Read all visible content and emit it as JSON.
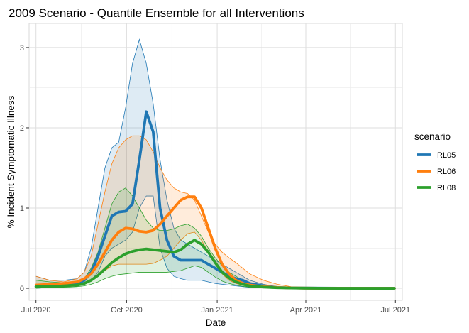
{
  "chart_data": {
    "type": "line",
    "title": "2009 Scenario - Quantile Ensemble for all Interventions",
    "xlabel": "Date",
    "ylabel": "% Incident Symptomatic Illness",
    "x_range": [
      "2020-06-24",
      "2021-07-08"
    ],
    "ylim": [
      -0.15,
      3.3
    ],
    "grid": true,
    "x_ticks": [
      {
        "date": "2020-07-01",
        "label": "Jul 2020"
      },
      {
        "date": "2020-10-01",
        "label": "Oct 2020"
      },
      {
        "date": "2021-01-01",
        "label": "Jan 2021"
      },
      {
        "date": "2021-04-01",
        "label": "Apr 2021"
      },
      {
        "date": "2021-07-01",
        "label": "Jul 2021"
      }
    ],
    "x_minor_ticks": [
      "2020-08-16",
      "2020-11-16",
      "2021-02-15",
      "2021-05-16"
    ],
    "y_ticks": [
      0,
      1,
      2,
      3
    ],
    "y_minor_ticks": [
      0.5,
      1.5,
      2.5
    ],
    "legend": {
      "title": "scenario",
      "position": "right"
    },
    "x": [
      "2020-07-01",
      "2020-07-15",
      "2020-07-29",
      "2020-08-12",
      "2020-08-19",
      "2020-08-26",
      "2020-09-02",
      "2020-09-09",
      "2020-09-16",
      "2020-09-23",
      "2020-09-30",
      "2020-10-07",
      "2020-10-14",
      "2020-10-21",
      "2020-10-28",
      "2020-11-04",
      "2020-11-11",
      "2020-11-18",
      "2020-11-25",
      "2020-12-02",
      "2020-12-09",
      "2020-12-16",
      "2020-12-23",
      "2020-12-30",
      "2021-01-06",
      "2021-01-13",
      "2021-01-20",
      "2021-01-27",
      "2021-02-03",
      "2021-02-17",
      "2021-03-03",
      "2021-03-17",
      "2021-03-31",
      "2021-04-14",
      "2021-05-05",
      "2021-05-26",
      "2021-06-16",
      "2021-06-30"
    ],
    "series": [
      {
        "name": "RL05",
        "color": "#1f77b4",
        "values": [
          0.02,
          0.03,
          0.04,
          0.06,
          0.1,
          0.2,
          0.4,
          0.65,
          0.9,
          0.95,
          0.96,
          1.05,
          1.6,
          2.2,
          1.95,
          1.0,
          0.6,
          0.4,
          0.35,
          0.35,
          0.35,
          0.35,
          0.3,
          0.25,
          0.2,
          0.15,
          0.12,
          0.1,
          0.06,
          0.03,
          0.01,
          0.005,
          0.003,
          0.002,
          0.001,
          0.0,
          0.0,
          0.0
        ],
        "lower": [
          0.0,
          0.01,
          0.02,
          0.03,
          0.05,
          0.1,
          0.2,
          0.4,
          0.5,
          0.55,
          0.6,
          0.7,
          1.0,
          1.15,
          1.15,
          0.5,
          0.25,
          0.15,
          0.12,
          0.1,
          0.1,
          0.1,
          0.08,
          0.06,
          0.05,
          0.04,
          0.03,
          0.02,
          0.01,
          0.005,
          0.002,
          0.001,
          0.0,
          0.0,
          0.0,
          0.0,
          0.0,
          0.0
        ],
        "upper": [
          0.15,
          0.1,
          0.1,
          0.12,
          0.2,
          0.5,
          1.0,
          1.5,
          1.75,
          1.82,
          2.25,
          2.8,
          3.1,
          2.8,
          2.3,
          1.6,
          1.1,
          0.75,
          0.6,
          0.55,
          0.5,
          0.45,
          0.4,
          0.35,
          0.3,
          0.25,
          0.2,
          0.15,
          0.1,
          0.05,
          0.02,
          0.01,
          0.005,
          0.003,
          0.001,
          0.0,
          0.0,
          0.0
        ]
      },
      {
        "name": "RL06",
        "color": "#ff7f0e",
        "values": [
          0.04,
          0.05,
          0.06,
          0.08,
          0.12,
          0.18,
          0.3,
          0.45,
          0.6,
          0.7,
          0.75,
          0.74,
          0.71,
          0.7,
          0.72,
          0.8,
          0.9,
          1.0,
          1.1,
          1.14,
          1.14,
          1.0,
          0.75,
          0.5,
          0.3,
          0.18,
          0.1,
          0.06,
          0.04,
          0.02,
          0.01,
          0.005,
          0.002,
          0.001,
          0.0,
          0.0,
          0.0,
          0.0
        ],
        "lower": [
          0.02,
          0.03,
          0.04,
          0.05,
          0.07,
          0.1,
          0.15,
          0.22,
          0.28,
          0.3,
          0.3,
          0.3,
          0.3,
          0.3,
          0.31,
          0.35,
          0.4,
          0.5,
          0.6,
          0.68,
          0.7,
          0.6,
          0.45,
          0.3,
          0.18,
          0.1,
          0.06,
          0.04,
          0.02,
          0.01,
          0.005,
          0.002,
          0.001,
          0.0,
          0.0,
          0.0,
          0.0,
          0.0
        ],
        "upper": [
          0.15,
          0.1,
          0.08,
          0.12,
          0.2,
          0.4,
          0.8,
          1.2,
          1.55,
          1.75,
          1.85,
          1.9,
          1.9,
          1.85,
          1.7,
          1.5,
          1.35,
          1.25,
          1.2,
          1.18,
          1.1,
          0.9,
          0.7,
          0.55,
          0.45,
          0.38,
          0.32,
          0.25,
          0.18,
          0.1,
          0.05,
          0.02,
          0.01,
          0.005,
          0.002,
          0.0,
          0.0,
          0.0
        ]
      },
      {
        "name": "RL08",
        "color": "#2ca02c",
        "values": [
          0.02,
          0.02,
          0.03,
          0.04,
          0.06,
          0.1,
          0.16,
          0.24,
          0.32,
          0.38,
          0.43,
          0.46,
          0.48,
          0.49,
          0.48,
          0.47,
          0.46,
          0.45,
          0.48,
          0.55,
          0.6,
          0.55,
          0.45,
          0.32,
          0.2,
          0.13,
          0.08,
          0.05,
          0.03,
          0.015,
          0.007,
          0.004,
          0.002,
          0.001,
          0.0,
          0.0,
          0.0,
          0.0
        ],
        "lower": [
          0.0,
          0.01,
          0.01,
          0.02,
          0.03,
          0.05,
          0.08,
          0.12,
          0.15,
          0.17,
          0.18,
          0.19,
          0.2,
          0.2,
          0.2,
          0.2,
          0.2,
          0.21,
          0.22,
          0.25,
          0.28,
          0.26,
          0.2,
          0.14,
          0.09,
          0.06,
          0.04,
          0.025,
          0.015,
          0.008,
          0.004,
          0.002,
          0.001,
          0.0,
          0.0,
          0.0,
          0.0,
          0.0
        ],
        "upper": [
          0.1,
          0.08,
          0.07,
          0.08,
          0.12,
          0.25,
          0.45,
          0.75,
          1.05,
          1.2,
          1.25,
          1.15,
          1.0,
          0.85,
          0.75,
          0.72,
          0.72,
          0.74,
          0.78,
          0.8,
          0.75,
          0.65,
          0.5,
          0.38,
          0.28,
          0.2,
          0.15,
          0.1,
          0.06,
          0.03,
          0.015,
          0.008,
          0.004,
          0.002,
          0.0,
          0.0,
          0.0,
          0.0
        ]
      }
    ]
  }
}
